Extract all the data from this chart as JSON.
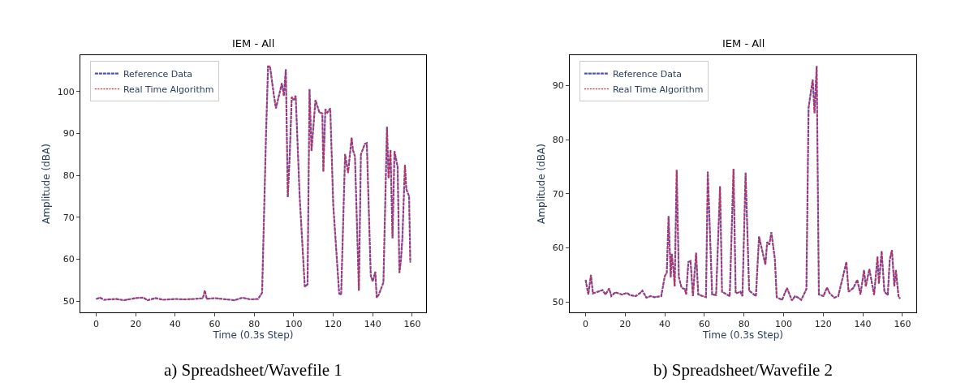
{
  "chart_data": [
    {
      "type": "line",
      "title": "IEM - All",
      "xlabel": "Time (0.3s Step)",
      "ylabel": "Amplitude (dBA)",
      "xlim": [
        -8,
        167
      ],
      "xticks": [
        0,
        20,
        40,
        60,
        80,
        100,
        120,
        140,
        160
      ],
      "ylim": [
        47.3,
        108.7
      ],
      "yticks": [
        50,
        60,
        70,
        80,
        90,
        100
      ],
      "legend": "top left",
      "annotations": [
        "a) Spreadsheet/Wavefile 1"
      ],
      "x": [
        0,
        2,
        4,
        10,
        14,
        20,
        24,
        26,
        30,
        34,
        40,
        44,
        50,
        54,
        55,
        56,
        60,
        66,
        70,
        74,
        78,
        82,
        84,
        86,
        87,
        88,
        90,
        91,
        93,
        94,
        95,
        96,
        97,
        98,
        99,
        100,
        101,
        103,
        105.6,
        107,
        108,
        109,
        111,
        113,
        114.5,
        115,
        116,
        117,
        118.5,
        120,
        123,
        124,
        126,
        127.5,
        129.3,
        130,
        131,
        133,
        134,
        136,
        137,
        139,
        140,
        141.3,
        142,
        143,
        145.4,
        147.2,
        148,
        149,
        150,
        151,
        152.6,
        153.5,
        154.3,
        155,
        156.3,
        157,
        158.4,
        159
      ],
      "series": [
        {
          "name": "Reference Data",
          "color": "#5050c0",
          "line_style": "dashed",
          "values": [
            50.5,
            50.8,
            50.3,
            50.5,
            50.2,
            50.7,
            50.8,
            50.2,
            50.7,
            50.3,
            50.5,
            50.4,
            50.5,
            50.7,
            52.5,
            50.5,
            50.7,
            50.4,
            50.2,
            50.8,
            50.4,
            50.5,
            52,
            90,
            106,
            106,
            99,
            96,
            100,
            102,
            99,
            105.3,
            74.8,
            85,
            98.7,
            98,
            99,
            75,
            53.4,
            54,
            100.6,
            85.8,
            98,
            95,
            94.8,
            80.9,
            95.8,
            95,
            96,
            73,
            51.8,
            51.5,
            85.1,
            80.6,
            89,
            86,
            84.5,
            52.5,
            85,
            87.5,
            87.7,
            56,
            54.7,
            57,
            50.8,
            51.5,
            54.4,
            91.6,
            79.3,
            86.1,
            65,
            85.8,
            82,
            56.7,
            60,
            65,
            82.5,
            76.7,
            75,
            59.2
          ]
        },
        {
          "name": "Real Time Algorithm",
          "color": "#ff2020",
          "line_style": "dotted",
          "values": [
            50.5,
            50.8,
            50.3,
            50.5,
            50.2,
            50.7,
            50.8,
            50.2,
            50.7,
            50.3,
            50.5,
            50.4,
            50.5,
            50.7,
            52.5,
            50.5,
            50.7,
            50.4,
            50.2,
            50.8,
            50.4,
            50.5,
            52,
            90,
            106,
            106,
            99,
            96,
            100,
            102,
            99,
            105.3,
            74.8,
            85,
            98.7,
            98,
            99,
            75,
            53.4,
            54,
            100.6,
            85.8,
            98,
            95,
            94.8,
            80.9,
            95.8,
            95,
            96,
            73,
            51.8,
            51.5,
            85.1,
            80.6,
            89,
            86,
            84.5,
            52.5,
            85,
            87.5,
            87.7,
            56,
            54.7,
            57,
            50.8,
            51.5,
            54.4,
            91.6,
            79.3,
            86.1,
            65,
            85.8,
            82,
            56.7,
            60,
            65,
            82.5,
            76.7,
            75,
            59.2
          ]
        }
      ]
    },
    {
      "type": "line",
      "title": "IEM - All",
      "xlabel": "Time (0.3s Step)",
      "ylabel": "Amplitude (dBA)",
      "xlim": [
        -8,
        167
      ],
      "xticks": [
        0,
        20,
        40,
        60,
        80,
        100,
        120,
        140,
        160
      ],
      "ylim": [
        48.1,
        95.6
      ],
      "yticks": [
        50,
        60,
        70,
        80,
        90
      ],
      "legend": "top left",
      "annotations": [
        "b) Spreadsheet/Wavefile 2"
      ],
      "x": [
        0,
        1.4,
        2.7,
        3.7,
        6.1,
        8.6,
        10,
        11.9,
        13,
        15,
        18.4,
        20.9,
        22.3,
        25.3,
        27.3,
        28.7,
        30.7,
        32.8,
        34.8,
        38.2,
        40,
        41,
        41.9,
        43,
        43.5,
        44.4,
        45,
        46,
        47.1,
        48.5,
        50.1,
        50.8,
        51.9,
        53,
        54.2,
        55.8,
        56.9,
        60.8,
        61.7,
        63.9,
        65.9,
        67.9,
        68.9,
        72.8,
        74.7,
        75.8,
        78.2,
        79.2,
        80.8,
        82.6,
        86,
        87.6,
        90.8,
        91.7,
        92.8,
        93.8,
        95.6,
        96.5,
        99.2,
        101.7,
        104.2,
        105.8,
        107.4,
        108.9,
        111.5,
        112.6,
        114.7,
        115.6,
        116.7,
        117.8,
        120.1,
        121.9,
        123.3,
        125.6,
        127.6,
        131.7,
        132.8,
        135.2,
        137.2,
        138.8,
        140.6,
        141.5,
        143.3,
        145.7,
        147.4,
        148.1,
        149.5,
        150.9,
        152.6,
        153.6,
        154.7,
        155.9,
        156.7,
        158,
        158.8
      ],
      "series": [
        {
          "name": "Reference Data",
          "color": "#5050c0",
          "line_style": "dashed",
          "values": [
            54.1,
            51.4,
            55,
            51.6,
            51.9,
            52.2,
            51.4,
            52.5,
            51.1,
            51.8,
            51.4,
            51.7,
            51.3,
            51.1,
            51.6,
            52.1,
            50.8,
            51.1,
            50.9,
            51.1,
            54.8,
            55.4,
            65.9,
            54.6,
            58.9,
            55.9,
            52.9,
            74.4,
            54.6,
            52.6,
            52.4,
            51.4,
            57.4,
            57.6,
            51.1,
            59.1,
            51.4,
            50.9,
            74.1,
            51.4,
            51.3,
            71.4,
            51.9,
            51.1,
            74.6,
            51.6,
            51.9,
            51.1,
            73.9,
            52.1,
            51.1,
            62.1,
            56.9,
            61.1,
            60.6,
            62.9,
            57.9,
            50.9,
            50.4,
            52.6,
            50.3,
            51.1,
            50.8,
            50.4,
            52.4,
            85.9,
            91.1,
            84.9,
            93.6,
            51.4,
            51.1,
            52.7,
            51.6,
            50.8,
            51.1,
            57.4,
            51.9,
            52.6,
            54.1,
            51.4,
            55.9,
            52.9,
            56.1,
            51.3,
            58.4,
            53.4,
            59.4,
            51.9,
            51.3,
            57.9,
            59.6,
            52.9,
            55.9,
            51.1,
            50.6
          ]
        },
        {
          "name": "Real Time Algorithm",
          "color": "#ff2020",
          "line_style": "dotted",
          "values": [
            54.1,
            51.4,
            55,
            51.6,
            51.9,
            52.2,
            51.4,
            52.5,
            51.1,
            51.8,
            51.4,
            51.7,
            51.3,
            51.1,
            51.6,
            52.1,
            50.8,
            51.1,
            50.9,
            51.1,
            54.8,
            55.4,
            65.9,
            54.6,
            58.9,
            55.9,
            52.9,
            74.4,
            54.6,
            52.6,
            52.4,
            51.4,
            57.4,
            57.6,
            51.1,
            59.1,
            51.4,
            50.9,
            74.1,
            51.4,
            51.3,
            71.4,
            51.9,
            51.1,
            74.6,
            51.6,
            51.9,
            51.1,
            73.9,
            52.1,
            51.1,
            62.1,
            56.9,
            61.1,
            60.6,
            62.9,
            57.9,
            50.9,
            50.4,
            52.6,
            50.3,
            51.1,
            50.8,
            50.4,
            52.4,
            85.9,
            91.1,
            84.9,
            93.6,
            51.4,
            51.1,
            52.7,
            51.6,
            50.8,
            51.1,
            57.4,
            51.9,
            52.6,
            54.1,
            51.4,
            55.9,
            52.9,
            56.1,
            51.3,
            58.4,
            53.4,
            59.4,
            51.9,
            51.3,
            57.9,
            59.6,
            52.9,
            55.9,
            51.1,
            50.6
          ]
        }
      ]
    }
  ]
}
